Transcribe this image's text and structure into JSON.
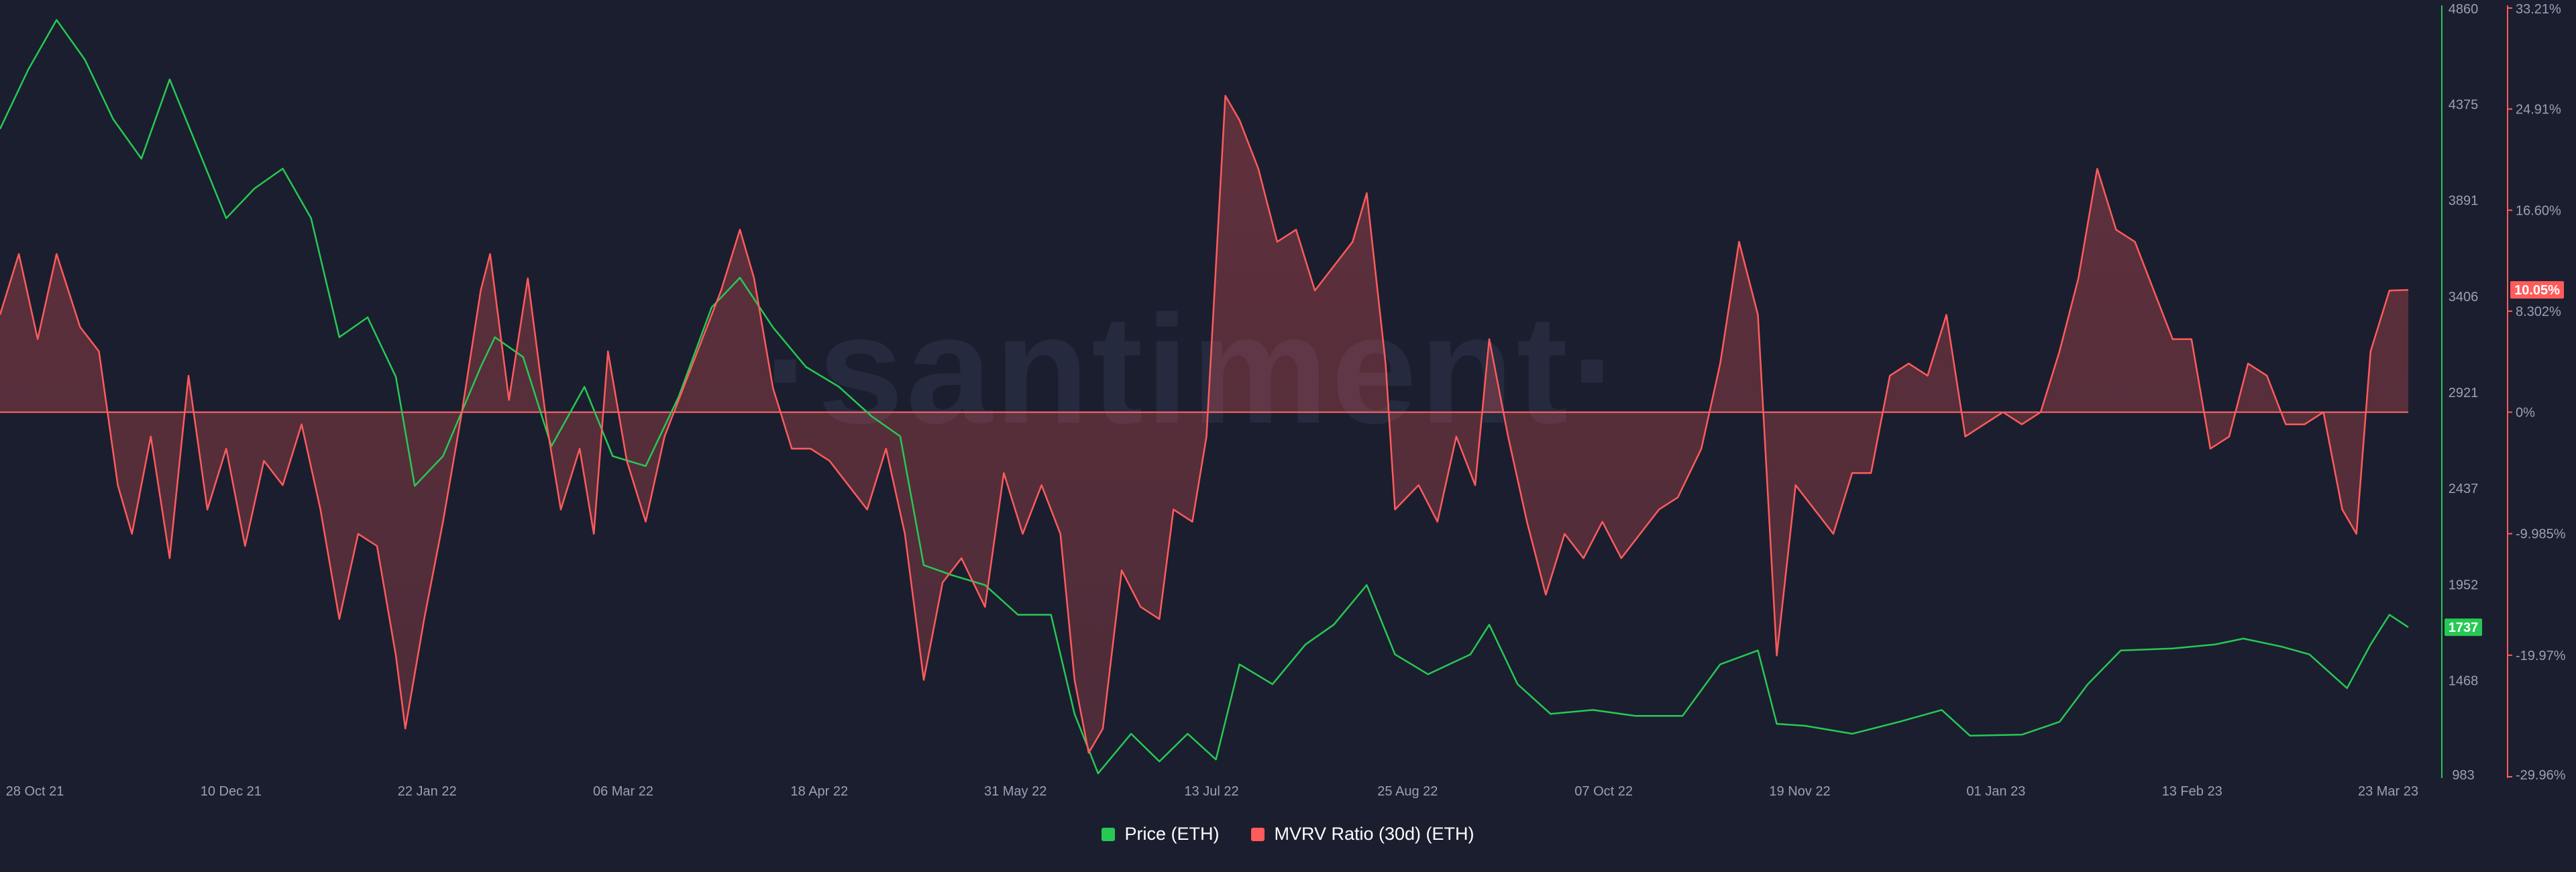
{
  "watermark": "·santiment·",
  "legend": [
    {
      "label": "Price (ETH)",
      "color": "#26c953"
    },
    {
      "label": "MVRV Ratio (30d) (ETH)",
      "color": "#ff5b5b"
    }
  ],
  "axes": {
    "price_ticks": [
      "4860",
      "4375",
      "3891",
      "3406",
      "2921",
      "2437",
      "1952",
      "1468",
      "983"
    ],
    "mvrv_ticks": [
      "33.21%",
      "24.91%",
      "16.60%",
      "8.302%",
      "0%",
      "-9.985%",
      "-19.97%",
      "-29.96%"
    ],
    "date_ticks": [
      "28 Oct 21",
      "10 Dec 21",
      "22 Jan 22",
      "06 Mar 22",
      "18 Apr 22",
      "31 May 22",
      "13 Jul 22",
      "25 Aug 22",
      "07 Oct 22",
      "19 Nov 22",
      "01 Jan 23",
      "13 Feb 23",
      "23 Mar 23"
    ],
    "current_price_label": "1737",
    "current_mvrv_label": "10.05%"
  },
  "chart_data": {
    "type": "line",
    "x_range": [
      "2021-10-28",
      "2023-03-23"
    ],
    "series": [
      {
        "name": "Price (ETH)",
        "axis": "left-price",
        "color": "#26c953",
        "ylim": [
          983,
          4860
        ],
        "points": [
          [
            "2021-10-28",
            4250
          ],
          [
            "2021-11-03",
            4550
          ],
          [
            "2021-11-09",
            4800
          ],
          [
            "2021-11-15",
            4600
          ],
          [
            "2021-11-21",
            4300
          ],
          [
            "2021-11-27",
            4100
          ],
          [
            "2021-12-03",
            4500
          ],
          [
            "2021-12-09",
            4150
          ],
          [
            "2021-12-15",
            3800
          ],
          [
            "2021-12-21",
            3950
          ],
          [
            "2021-12-27",
            4050
          ],
          [
            "2022-01-02",
            3800
          ],
          [
            "2022-01-08",
            3200
          ],
          [
            "2022-01-14",
            3300
          ],
          [
            "2022-01-20",
            3000
          ],
          [
            "2022-01-24",
            2450
          ],
          [
            "2022-01-30",
            2600
          ],
          [
            "2022-02-07",
            3050
          ],
          [
            "2022-02-10",
            3200
          ],
          [
            "2022-02-16",
            3100
          ],
          [
            "2022-02-22",
            2650
          ],
          [
            "2022-03-01",
            2950
          ],
          [
            "2022-03-07",
            2600
          ],
          [
            "2022-03-14",
            2550
          ],
          [
            "2022-03-21",
            2900
          ],
          [
            "2022-03-28",
            3350
          ],
          [
            "2022-04-03",
            3500
          ],
          [
            "2022-04-10",
            3250
          ],
          [
            "2022-04-17",
            3050
          ],
          [
            "2022-04-24",
            2950
          ],
          [
            "2022-05-01",
            2800
          ],
          [
            "2022-05-07",
            2700
          ],
          [
            "2022-05-12",
            2050
          ],
          [
            "2022-05-18",
            2000
          ],
          [
            "2022-05-25",
            1950
          ],
          [
            "2022-06-01",
            1800
          ],
          [
            "2022-06-08",
            1800
          ],
          [
            "2022-06-13",
            1300
          ],
          [
            "2022-06-18",
            1000
          ],
          [
            "2022-06-25",
            1200
          ],
          [
            "2022-07-01",
            1060
          ],
          [
            "2022-07-07",
            1200
          ],
          [
            "2022-07-13",
            1070
          ],
          [
            "2022-07-18",
            1550
          ],
          [
            "2022-07-25",
            1450
          ],
          [
            "2022-08-01",
            1650
          ],
          [
            "2022-08-07",
            1750
          ],
          [
            "2022-08-14",
            1950
          ],
          [
            "2022-08-20",
            1600
          ],
          [
            "2022-08-27",
            1500
          ],
          [
            "2022-09-05",
            1600
          ],
          [
            "2022-09-09",
            1750
          ],
          [
            "2022-09-15",
            1450
          ],
          [
            "2022-09-22",
            1300
          ],
          [
            "2022-10-01",
            1320
          ],
          [
            "2022-10-10",
            1290
          ],
          [
            "2022-10-20",
            1290
          ],
          [
            "2022-10-28",
            1550
          ],
          [
            "2022-11-05",
            1620
          ],
          [
            "2022-11-09",
            1250
          ],
          [
            "2022-11-15",
            1240
          ],
          [
            "2022-11-25",
            1200
          ],
          [
            "2022-12-05",
            1260
          ],
          [
            "2022-12-14",
            1320
          ],
          [
            "2022-12-20",
            1190
          ],
          [
            "2022-12-31",
            1195
          ],
          [
            "2023-01-08",
            1260
          ],
          [
            "2023-01-14",
            1450
          ],
          [
            "2023-01-21",
            1620
          ],
          [
            "2023-02-01",
            1630
          ],
          [
            "2023-02-10",
            1650
          ],
          [
            "2023-02-16",
            1680
          ],
          [
            "2023-02-24",
            1640
          ],
          [
            "2023-03-02",
            1600
          ],
          [
            "2023-03-10",
            1430
          ],
          [
            "2023-03-15",
            1650
          ],
          [
            "2023-03-19",
            1800
          ],
          [
            "2023-03-23",
            1737
          ]
        ]
      },
      {
        "name": "MVRV Ratio (30d) (ETH)",
        "axis": "right-percent",
        "color": "#ff5b5b",
        "ylim": [
          -29.96,
          33.21
        ],
        "points": [
          [
            "2021-10-28",
            8
          ],
          [
            "2021-11-01",
            13
          ],
          [
            "2021-11-05",
            6
          ],
          [
            "2021-11-09",
            13
          ],
          [
            "2021-11-14",
            7
          ],
          [
            "2021-11-18",
            5
          ],
          [
            "2021-11-22",
            -6
          ],
          [
            "2021-11-25",
            -10
          ],
          [
            "2021-11-29",
            -2
          ],
          [
            "2021-12-03",
            -12
          ],
          [
            "2021-12-07",
            3
          ],
          [
            "2021-12-11",
            -8
          ],
          [
            "2021-12-15",
            -3
          ],
          [
            "2021-12-19",
            -11
          ],
          [
            "2021-12-23",
            -4
          ],
          [
            "2021-12-27",
            -6
          ],
          [
            "2021-12-31",
            -1
          ],
          [
            "2022-01-04",
            -8
          ],
          [
            "2022-01-08",
            -17
          ],
          [
            "2022-01-12",
            -10
          ],
          [
            "2022-01-16",
            -11
          ],
          [
            "2022-01-20",
            -20
          ],
          [
            "2022-01-22",
            -26
          ],
          [
            "2022-01-26",
            -17
          ],
          [
            "2022-01-30",
            -9
          ],
          [
            "2022-02-03",
            0
          ],
          [
            "2022-02-07",
            10
          ],
          [
            "2022-02-09",
            13
          ],
          [
            "2022-02-13",
            1
          ],
          [
            "2022-02-17",
            11
          ],
          [
            "2022-02-21",
            -1
          ],
          [
            "2022-02-24",
            -8
          ],
          [
            "2022-02-28",
            -3
          ],
          [
            "2022-03-03",
            -10
          ],
          [
            "2022-03-06",
            5
          ],
          [
            "2022-03-10",
            -4
          ],
          [
            "2022-03-14",
            -9
          ],
          [
            "2022-03-18",
            -2
          ],
          [
            "2022-03-22",
            2
          ],
          [
            "2022-03-26",
            6
          ],
          [
            "2022-03-30",
            10
          ],
          [
            "2022-04-03",
            15
          ],
          [
            "2022-04-06",
            11
          ],
          [
            "2022-04-10",
            2
          ],
          [
            "2022-04-14",
            -3
          ],
          [
            "2022-04-18",
            -3
          ],
          [
            "2022-04-22",
            -4
          ],
          [
            "2022-04-26",
            -6
          ],
          [
            "2022-04-30",
            -8
          ],
          [
            "2022-05-04",
            -3
          ],
          [
            "2022-05-08",
            -10
          ],
          [
            "2022-05-12",
            -22
          ],
          [
            "2022-05-16",
            -14
          ],
          [
            "2022-05-20",
            -12
          ],
          [
            "2022-05-25",
            -16
          ],
          [
            "2022-05-29",
            -5
          ],
          [
            "2022-06-02",
            -10
          ],
          [
            "2022-06-06",
            -6
          ],
          [
            "2022-06-10",
            -10
          ],
          [
            "2022-06-13",
            -22
          ],
          [
            "2022-06-16",
            -28
          ],
          [
            "2022-06-19",
            -26
          ],
          [
            "2022-06-23",
            -13
          ],
          [
            "2022-06-27",
            -16
          ],
          [
            "2022-07-01",
            -17
          ],
          [
            "2022-07-04",
            -8
          ],
          [
            "2022-07-08",
            -9
          ],
          [
            "2022-07-11",
            -2
          ],
          [
            "2022-07-15",
            26
          ],
          [
            "2022-07-18",
            24
          ],
          [
            "2022-07-22",
            20
          ],
          [
            "2022-07-26",
            14
          ],
          [
            "2022-07-30",
            15
          ],
          [
            "2022-08-03",
            10
          ],
          [
            "2022-08-07",
            12
          ],
          [
            "2022-08-11",
            14
          ],
          [
            "2022-08-14",
            18
          ],
          [
            "2022-08-18",
            4
          ],
          [
            "2022-08-20",
            -8
          ],
          [
            "2022-08-25",
            -6
          ],
          [
            "2022-08-29",
            -9
          ],
          [
            "2022-09-02",
            -2
          ],
          [
            "2022-09-06",
            -6
          ],
          [
            "2022-09-09",
            6
          ],
          [
            "2022-09-13",
            -2
          ],
          [
            "2022-09-17",
            -9
          ],
          [
            "2022-09-21",
            -15
          ],
          [
            "2022-09-25",
            -10
          ],
          [
            "2022-09-29",
            -12
          ],
          [
            "2022-10-03",
            -9
          ],
          [
            "2022-10-07",
            -12
          ],
          [
            "2022-10-11",
            -10
          ],
          [
            "2022-10-15",
            -8
          ],
          [
            "2022-10-19",
            -7
          ],
          [
            "2022-10-24",
            -3
          ],
          [
            "2022-10-28",
            4
          ],
          [
            "2022-11-01",
            14
          ],
          [
            "2022-11-05",
            8
          ],
          [
            "2022-11-09",
            -20
          ],
          [
            "2022-11-13",
            -6
          ],
          [
            "2022-11-17",
            -8
          ],
          [
            "2022-11-21",
            -10
          ],
          [
            "2022-11-25",
            -5
          ],
          [
            "2022-11-29",
            -5
          ],
          [
            "2022-12-03",
            3
          ],
          [
            "2022-12-07",
            4
          ],
          [
            "2022-12-11",
            3
          ],
          [
            "2022-12-15",
            8
          ],
          [
            "2022-12-19",
            -2
          ],
          [
            "2022-12-23",
            -1
          ],
          [
            "2022-12-27",
            0
          ],
          [
            "2022-12-31",
            -1
          ],
          [
            "2023-01-04",
            0
          ],
          [
            "2023-01-08",
            5
          ],
          [
            "2023-01-12",
            11
          ],
          [
            "2023-01-16",
            20
          ],
          [
            "2023-01-20",
            15
          ],
          [
            "2023-01-24",
            14
          ],
          [
            "2023-01-28",
            10
          ],
          [
            "2023-02-01",
            6
          ],
          [
            "2023-02-05",
            6
          ],
          [
            "2023-02-09",
            -3
          ],
          [
            "2023-02-13",
            -2
          ],
          [
            "2023-02-17",
            4
          ],
          [
            "2023-02-21",
            3
          ],
          [
            "2023-02-25",
            -1
          ],
          [
            "2023-03-01",
            -1
          ],
          [
            "2023-03-05",
            0
          ],
          [
            "2023-03-09",
            -8
          ],
          [
            "2023-03-12",
            -10
          ],
          [
            "2023-03-15",
            5
          ],
          [
            "2023-03-19",
            10
          ],
          [
            "2023-03-23",
            10.05
          ]
        ]
      }
    ],
    "price_axis": {
      "ticks": [
        4860,
        4375,
        3891,
        3406,
        2921,
        2437,
        1952,
        1468,
        983
      ]
    },
    "mvrv_axis": {
      "ticks": [
        33.21,
        24.91,
        16.6,
        8.302,
        0,
        -9.985,
        -19.97,
        -29.96
      ],
      "baseline": 0
    },
    "grid": false,
    "legend_position": "bottom-center"
  }
}
